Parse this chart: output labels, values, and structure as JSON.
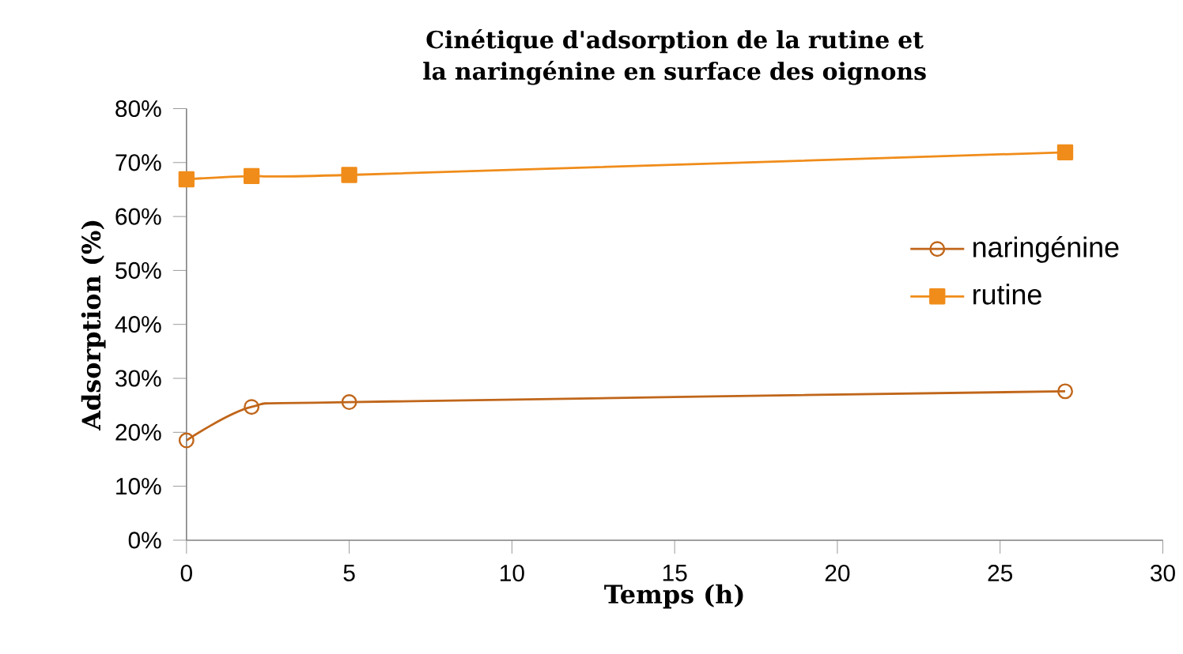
{
  "chart_data": {
    "type": "line",
    "title": "Cinétique d'adsorption de la rutine et la naringénine en surface des oignons",
    "xlabel": "Temps (h)",
    "ylabel": "Adsorption (%)",
    "x": [
      0,
      2,
      5,
      27
    ],
    "series": [
      {
        "name": "naringénine",
        "color": "#c0661a",
        "marker": "circle",
        "values": [
          18.5,
          24.7,
          25.6,
          27.6
        ]
      },
      {
        "name": "rutine",
        "color": "#f08c1a",
        "marker": "square",
        "values": [
          66.9,
          67.5,
          67.7,
          71.9
        ]
      }
    ],
    "xlim": [
      0,
      30
    ],
    "xticks": [
      0,
      5,
      10,
      15,
      20,
      25,
      30
    ],
    "ylim": [
      0,
      80
    ],
    "yticks": [
      {
        "value": 0,
        "label": "0%"
      },
      {
        "value": 10,
        "label": "10%"
      },
      {
        "value": 20,
        "label": "20%"
      },
      {
        "value": 30,
        "label": "30%"
      },
      {
        "value": 40,
        "label": "40%"
      },
      {
        "value": 50,
        "label": "50%"
      },
      {
        "value": 60,
        "label": "60%"
      },
      {
        "value": 70,
        "label": "70%"
      },
      {
        "value": 80,
        "label": "80%"
      }
    ],
    "legend": "right",
    "grid": false
  }
}
